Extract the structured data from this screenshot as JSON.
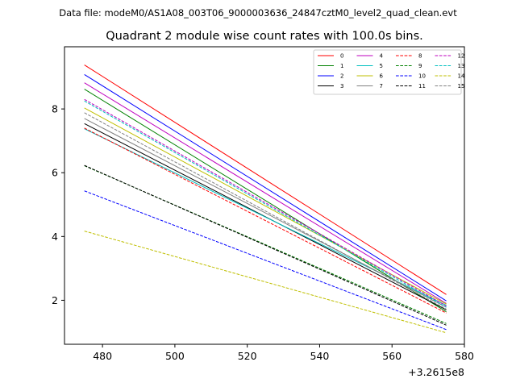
{
  "chart_data": {
    "type": "line",
    "suptitle": "Data file: modeM0/AS1A08_003T06_9000003636_24847cztM0_level2_quad_clean.evt",
    "title": "Quadrant 2 module wise count rates with 100.0s bins.",
    "xlabel": "",
    "ylabel": "",
    "x_offset_label": "+3.2615e8",
    "xlim": [
      469.5,
      580
    ],
    "ylim": [
      0.62,
      9.95
    ],
    "xticks": [
      480,
      500,
      520,
      540,
      560,
      580
    ],
    "yticks": [
      2,
      4,
      6,
      8
    ],
    "legend_position": "upper right",
    "legend_columns": 4,
    "x": [
      475,
      575
    ],
    "series": [
      {
        "name": "0",
        "values": [
          9.38,
          2.18
        ],
        "color": "#ff0000",
        "dash": "solid"
      },
      {
        "name": "1",
        "values": [
          8.62,
          1.64
        ],
        "color": "#008000",
        "dash": "solid"
      },
      {
        "name": "2",
        "values": [
          9.08,
          1.98
        ],
        "color": "#0000ff",
        "dash": "solid"
      },
      {
        "name": "3",
        "values": [
          7.54,
          1.7
        ],
        "color": "#000000",
        "dash": "solid"
      },
      {
        "name": "4",
        "values": [
          8.82,
          1.9
        ],
        "color": "#bf00bf",
        "dash": "solid"
      },
      {
        "name": "5",
        "values": [
          7.38,
          1.84
        ],
        "color": "#00bfbf",
        "dash": "solid"
      },
      {
        "name": "6",
        "values": [
          8.03,
          1.88
        ],
        "color": "#bfbf00",
        "dash": "solid"
      },
      {
        "name": "7",
        "values": [
          7.7,
          1.78
        ],
        "color": "#808080",
        "dash": "solid"
      },
      {
        "name": "8",
        "values": [
          7.4,
          1.6
        ],
        "color": "#ff0000",
        "dash": "dashed"
      },
      {
        "name": "9",
        "values": [
          6.22,
          1.27
        ],
        "color": "#008000",
        "dash": "dashed"
      },
      {
        "name": "10",
        "values": [
          5.43,
          1.08
        ],
        "color": "#0000ff",
        "dash": "dashed"
      },
      {
        "name": "11",
        "values": [
          6.23,
          1.22
        ],
        "color": "#000000",
        "dash": "dashed"
      },
      {
        "name": "12",
        "values": [
          8.3,
          1.82
        ],
        "color": "#bf00bf",
        "dash": "dashed"
      },
      {
        "name": "13",
        "values": [
          8.25,
          1.78
        ],
        "color": "#00bfbf",
        "dash": "dashed"
      },
      {
        "name": "14",
        "values": [
          4.17,
          0.98
        ],
        "color": "#bfbf00",
        "dash": "dashed"
      },
      {
        "name": "15",
        "values": [
          7.88,
          1.72
        ],
        "color": "#808080",
        "dash": "dashed"
      }
    ]
  }
}
